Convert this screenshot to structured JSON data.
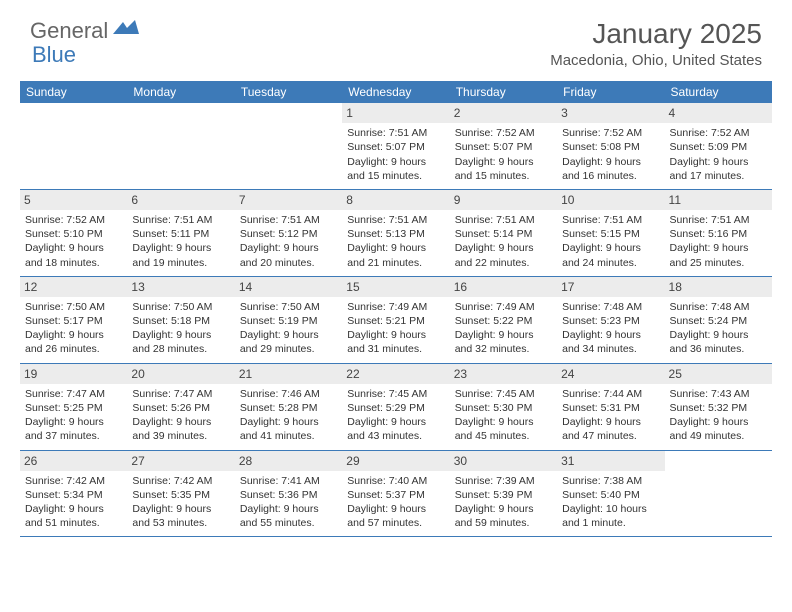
{
  "logo": {
    "general": "General",
    "blue": "Blue"
  },
  "title": "January 2025",
  "location": "Macedonia, Ohio, United States",
  "colors": {
    "header_bg": "#3d7ab8",
    "daynum_bg": "#ececec",
    "text": "#333333",
    "logo_gray": "#666666",
    "logo_blue": "#3d7ab8"
  },
  "day_names": [
    "Sunday",
    "Monday",
    "Tuesday",
    "Wednesday",
    "Thursday",
    "Friday",
    "Saturday"
  ],
  "weeks": [
    [
      null,
      null,
      null,
      {
        "n": "1",
        "sr": "Sunrise: 7:51 AM",
        "ss": "Sunset: 5:07 PM",
        "d1": "Daylight: 9 hours",
        "d2": "and 15 minutes."
      },
      {
        "n": "2",
        "sr": "Sunrise: 7:52 AM",
        "ss": "Sunset: 5:07 PM",
        "d1": "Daylight: 9 hours",
        "d2": "and 15 minutes."
      },
      {
        "n": "3",
        "sr": "Sunrise: 7:52 AM",
        "ss": "Sunset: 5:08 PM",
        "d1": "Daylight: 9 hours",
        "d2": "and 16 minutes."
      },
      {
        "n": "4",
        "sr": "Sunrise: 7:52 AM",
        "ss": "Sunset: 5:09 PM",
        "d1": "Daylight: 9 hours",
        "d2": "and 17 minutes."
      }
    ],
    [
      {
        "n": "5",
        "sr": "Sunrise: 7:52 AM",
        "ss": "Sunset: 5:10 PM",
        "d1": "Daylight: 9 hours",
        "d2": "and 18 minutes."
      },
      {
        "n": "6",
        "sr": "Sunrise: 7:51 AM",
        "ss": "Sunset: 5:11 PM",
        "d1": "Daylight: 9 hours",
        "d2": "and 19 minutes."
      },
      {
        "n": "7",
        "sr": "Sunrise: 7:51 AM",
        "ss": "Sunset: 5:12 PM",
        "d1": "Daylight: 9 hours",
        "d2": "and 20 minutes."
      },
      {
        "n": "8",
        "sr": "Sunrise: 7:51 AM",
        "ss": "Sunset: 5:13 PM",
        "d1": "Daylight: 9 hours",
        "d2": "and 21 minutes."
      },
      {
        "n": "9",
        "sr": "Sunrise: 7:51 AM",
        "ss": "Sunset: 5:14 PM",
        "d1": "Daylight: 9 hours",
        "d2": "and 22 minutes."
      },
      {
        "n": "10",
        "sr": "Sunrise: 7:51 AM",
        "ss": "Sunset: 5:15 PM",
        "d1": "Daylight: 9 hours",
        "d2": "and 24 minutes."
      },
      {
        "n": "11",
        "sr": "Sunrise: 7:51 AM",
        "ss": "Sunset: 5:16 PM",
        "d1": "Daylight: 9 hours",
        "d2": "and 25 minutes."
      }
    ],
    [
      {
        "n": "12",
        "sr": "Sunrise: 7:50 AM",
        "ss": "Sunset: 5:17 PM",
        "d1": "Daylight: 9 hours",
        "d2": "and 26 minutes."
      },
      {
        "n": "13",
        "sr": "Sunrise: 7:50 AM",
        "ss": "Sunset: 5:18 PM",
        "d1": "Daylight: 9 hours",
        "d2": "and 28 minutes."
      },
      {
        "n": "14",
        "sr": "Sunrise: 7:50 AM",
        "ss": "Sunset: 5:19 PM",
        "d1": "Daylight: 9 hours",
        "d2": "and 29 minutes."
      },
      {
        "n": "15",
        "sr": "Sunrise: 7:49 AM",
        "ss": "Sunset: 5:21 PM",
        "d1": "Daylight: 9 hours",
        "d2": "and 31 minutes."
      },
      {
        "n": "16",
        "sr": "Sunrise: 7:49 AM",
        "ss": "Sunset: 5:22 PM",
        "d1": "Daylight: 9 hours",
        "d2": "and 32 minutes."
      },
      {
        "n": "17",
        "sr": "Sunrise: 7:48 AM",
        "ss": "Sunset: 5:23 PM",
        "d1": "Daylight: 9 hours",
        "d2": "and 34 minutes."
      },
      {
        "n": "18",
        "sr": "Sunrise: 7:48 AM",
        "ss": "Sunset: 5:24 PM",
        "d1": "Daylight: 9 hours",
        "d2": "and 36 minutes."
      }
    ],
    [
      {
        "n": "19",
        "sr": "Sunrise: 7:47 AM",
        "ss": "Sunset: 5:25 PM",
        "d1": "Daylight: 9 hours",
        "d2": "and 37 minutes."
      },
      {
        "n": "20",
        "sr": "Sunrise: 7:47 AM",
        "ss": "Sunset: 5:26 PM",
        "d1": "Daylight: 9 hours",
        "d2": "and 39 minutes."
      },
      {
        "n": "21",
        "sr": "Sunrise: 7:46 AM",
        "ss": "Sunset: 5:28 PM",
        "d1": "Daylight: 9 hours",
        "d2": "and 41 minutes."
      },
      {
        "n": "22",
        "sr": "Sunrise: 7:45 AM",
        "ss": "Sunset: 5:29 PM",
        "d1": "Daylight: 9 hours",
        "d2": "and 43 minutes."
      },
      {
        "n": "23",
        "sr": "Sunrise: 7:45 AM",
        "ss": "Sunset: 5:30 PM",
        "d1": "Daylight: 9 hours",
        "d2": "and 45 minutes."
      },
      {
        "n": "24",
        "sr": "Sunrise: 7:44 AM",
        "ss": "Sunset: 5:31 PM",
        "d1": "Daylight: 9 hours",
        "d2": "and 47 minutes."
      },
      {
        "n": "25",
        "sr": "Sunrise: 7:43 AM",
        "ss": "Sunset: 5:32 PM",
        "d1": "Daylight: 9 hours",
        "d2": "and 49 minutes."
      }
    ],
    [
      {
        "n": "26",
        "sr": "Sunrise: 7:42 AM",
        "ss": "Sunset: 5:34 PM",
        "d1": "Daylight: 9 hours",
        "d2": "and 51 minutes."
      },
      {
        "n": "27",
        "sr": "Sunrise: 7:42 AM",
        "ss": "Sunset: 5:35 PM",
        "d1": "Daylight: 9 hours",
        "d2": "and 53 minutes."
      },
      {
        "n": "28",
        "sr": "Sunrise: 7:41 AM",
        "ss": "Sunset: 5:36 PM",
        "d1": "Daylight: 9 hours",
        "d2": "and 55 minutes."
      },
      {
        "n": "29",
        "sr": "Sunrise: 7:40 AM",
        "ss": "Sunset: 5:37 PM",
        "d1": "Daylight: 9 hours",
        "d2": "and 57 minutes."
      },
      {
        "n": "30",
        "sr": "Sunrise: 7:39 AM",
        "ss": "Sunset: 5:39 PM",
        "d1": "Daylight: 9 hours",
        "d2": "and 59 minutes."
      },
      {
        "n": "31",
        "sr": "Sunrise: 7:38 AM",
        "ss": "Sunset: 5:40 PM",
        "d1": "Daylight: 10 hours",
        "d2": "and 1 minute."
      },
      null
    ]
  ]
}
